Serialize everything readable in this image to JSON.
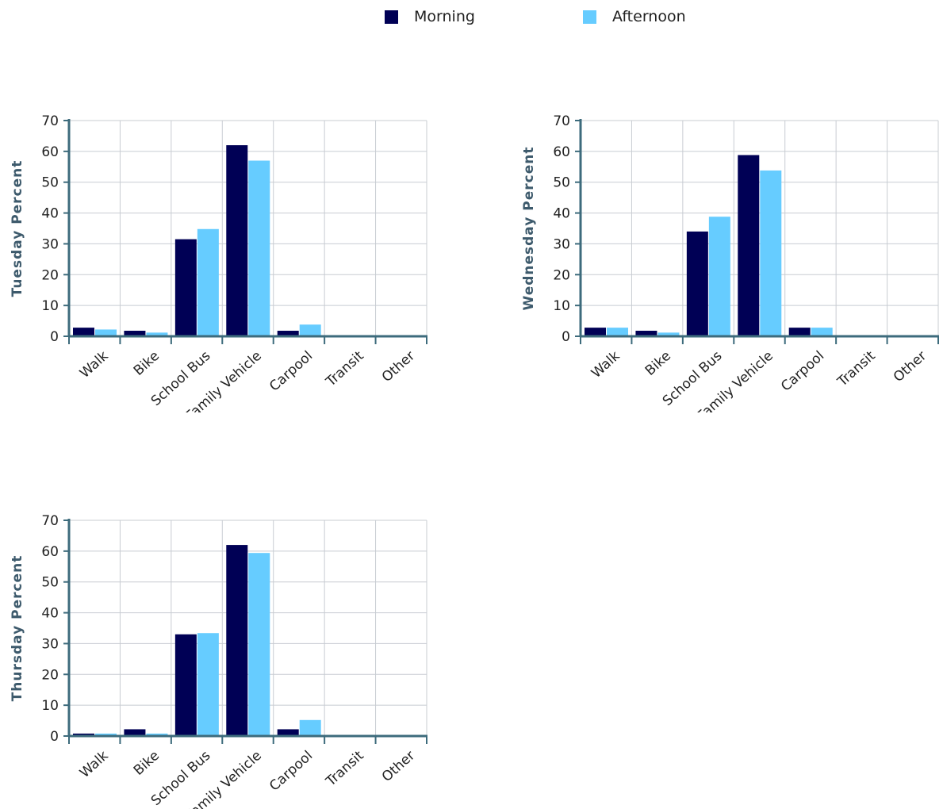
{
  "legend": {
    "items": [
      {
        "label": "Morning",
        "color": "#000055"
      },
      {
        "label": "Afternoon",
        "color": "#66CCFF"
      }
    ]
  },
  "chart_data": [
    {
      "type": "bar",
      "ylabel": "Tuesday Percent",
      "xlabel": "",
      "ylim": [
        0,
        70
      ],
      "yticks": [
        0,
        10,
        20,
        30,
        40,
        50,
        60,
        70
      ],
      "grid": true,
      "legend_position": "top-center",
      "categories": [
        "Walk",
        "Bike",
        "School Bus",
        "Family Vehicle",
        "Carpool",
        "Transit",
        "Other"
      ],
      "series": [
        {
          "name": "Morning",
          "color": "#000055",
          "values": [
            2.8,
            1.8,
            31.5,
            62.0,
            1.8,
            0,
            0
          ]
        },
        {
          "name": "Afternoon",
          "color": "#66CCFF",
          "values": [
            2.2,
            1.2,
            34.8,
            57.0,
            3.8,
            0,
            0
          ]
        }
      ]
    },
    {
      "type": "bar",
      "ylabel": "Wednesday Percent",
      "xlabel": "",
      "ylim": [
        0,
        70
      ],
      "yticks": [
        0,
        10,
        20,
        30,
        40,
        50,
        60,
        70
      ],
      "grid": true,
      "legend_position": "top-center",
      "categories": [
        "Walk",
        "Bike",
        "School Bus",
        "Family Vehicle",
        "Carpool",
        "Transit",
        "Other"
      ],
      "series": [
        {
          "name": "Morning",
          "color": "#000055",
          "values": [
            2.8,
            1.8,
            34.0,
            58.8,
            2.8,
            0,
            0
          ]
        },
        {
          "name": "Afternoon",
          "color": "#66CCFF",
          "values": [
            2.8,
            1.2,
            38.8,
            53.8,
            2.8,
            0,
            0
          ]
        }
      ]
    },
    {
      "type": "bar",
      "ylabel": "Thursday Percent",
      "xlabel": "",
      "ylim": [
        0,
        70
      ],
      "yticks": [
        0,
        10,
        20,
        30,
        40,
        50,
        60,
        70
      ],
      "grid": true,
      "legend_position": "top-center",
      "categories": [
        "Walk",
        "Bike",
        "School Bus",
        "Family Vehicle",
        "Carpool",
        "Transit",
        "Other"
      ],
      "series": [
        {
          "name": "Morning",
          "color": "#000055",
          "values": [
            0.8,
            2.2,
            33.0,
            62.0,
            2.2,
            0,
            0
          ]
        },
        {
          "name": "Afternoon",
          "color": "#66CCFF",
          "values": [
            0.8,
            0.8,
            33.4,
            59.4,
            5.2,
            0,
            0
          ]
        }
      ]
    }
  ]
}
